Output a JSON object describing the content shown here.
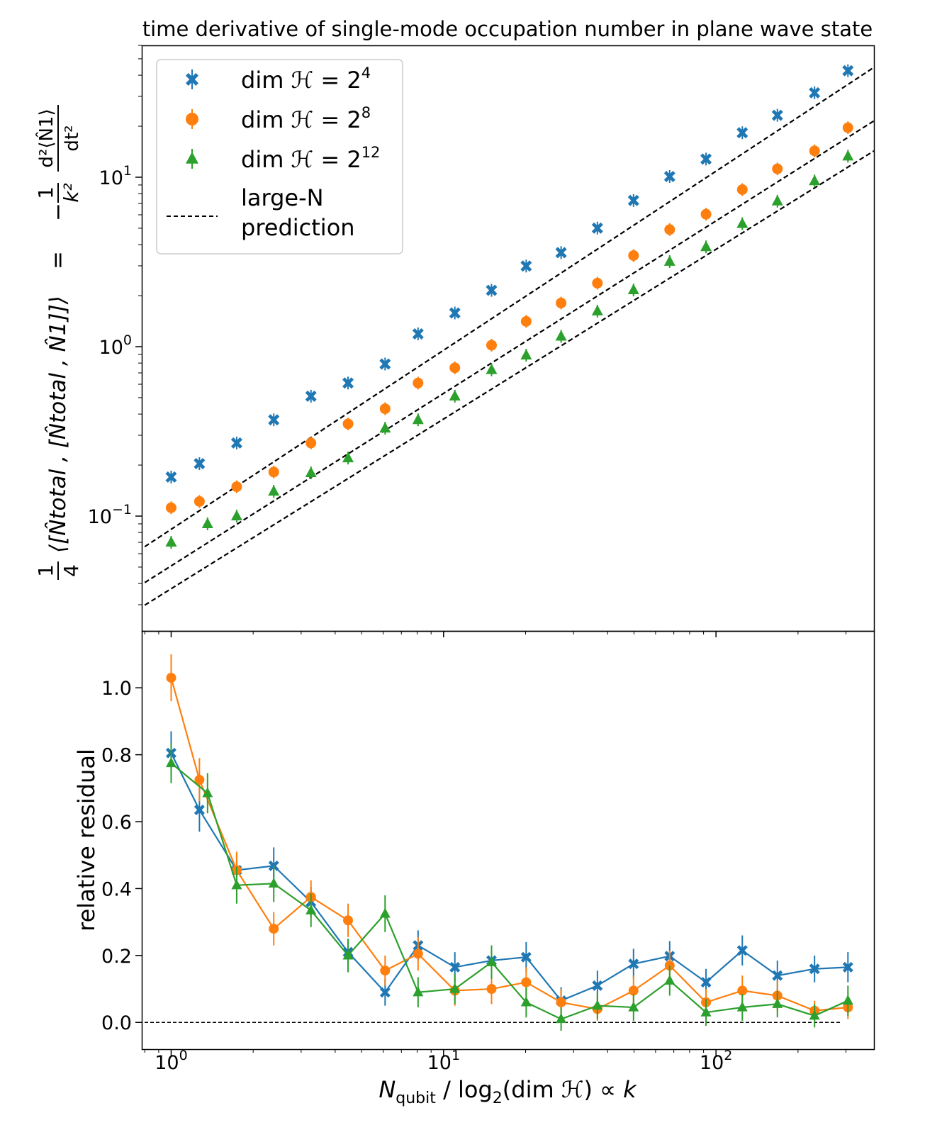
{
  "title": "time derivative of single-mode occupation number in plane wave state",
  "legend": {
    "entries": [
      {
        "prefix": "dim ",
        "script": "ℋ",
        "eq": " = 2",
        "sup": "4"
      },
      {
        "prefix": "dim ",
        "script": "ℋ",
        "eq": " = 2",
        "sup": "8"
      },
      {
        "prefix": "dim ",
        "script": "ℋ",
        "eq": " = 2",
        "sup": "12"
      }
    ],
    "prediction_line1": "large-N",
    "prediction_line2": "prediction"
  },
  "top_ylabel": {
    "frac_num": "1",
    "frac_den": "4",
    "commutator": "⟨[N̂total , [N̂total , N̂1]]⟩",
    "equals": "=",
    "rhs_sign": "−",
    "rhs_frac_num": "1",
    "rhs_frac_den": "k²",
    "rhs_deriv_num": "d²⟨N̂1⟩",
    "rhs_deriv_den": "dt²"
  },
  "bottom_ylabel": "relative residual",
  "xlabel": {
    "main": "N",
    "sub": "qubit",
    "mid": " / log",
    "sub2": "2",
    "rest": "(dim ",
    "script": "ℋ",
    "close": ")  ∝  ",
    "k": "k"
  },
  "colors": {
    "s4": "#1f77b4",
    "s8": "#ff7f0e",
    "s12": "#2ca02c",
    "prediction": "#000000"
  },
  "chart_data": [
    {
      "type": "scatter",
      "panel": "top",
      "xscale": "log",
      "yscale": "log",
      "xlim": [
        0.78,
        380
      ],
      "ylim": [
        0.021,
        60
      ],
      "x_ticks": [
        {
          "v": 1,
          "base": "10",
          "exp": "0"
        },
        {
          "v": 10,
          "base": "10",
          "exp": "1"
        },
        {
          "v": 100,
          "base": "10",
          "exp": "2"
        }
      ],
      "y_ticks": [
        {
          "v": 0.1,
          "base": "10",
          "exp": "−1"
        },
        {
          "v": 1,
          "base": "10",
          "exp": "0"
        },
        {
          "v": 10,
          "base": "10",
          "exp": "1"
        }
      ],
      "series": [
        {
          "key": "s4",
          "marker": "x",
          "x": [
            1.0,
            1.27,
            1.74,
            2.38,
            3.26,
            4.46,
            6.1,
            8.06,
            11.0,
            15.0,
            20.1,
            27.0,
            36.7,
            49.8,
            67.6,
            91.9,
            124.9,
            168.0,
            230.0,
            305.0
          ],
          "y": [
            0.17,
            0.204,
            0.27,
            0.37,
            0.51,
            0.61,
            0.79,
            1.19,
            1.58,
            2.15,
            2.99,
            3.59,
            5.01,
            7.29,
            10.1,
            12.8,
            18.3,
            23.2,
            31.5,
            42.5
          ]
        },
        {
          "key": "s8",
          "marker": "o",
          "x": [
            1.0,
            1.27,
            1.74,
            2.38,
            3.26,
            4.46,
            6.1,
            8.06,
            11.0,
            15.0,
            20.1,
            27.0,
            36.7,
            49.8,
            67.6,
            91.9,
            124.9,
            168.0,
            230.0,
            305.0
          ],
          "y": [
            0.112,
            0.122,
            0.149,
            0.182,
            0.27,
            0.35,
            0.43,
            0.61,
            0.75,
            1.02,
            1.41,
            1.81,
            2.37,
            3.45,
            4.91,
            6.05,
            8.45,
            11.2,
            14.3,
            19.6
          ]
        },
        {
          "key": "s12",
          "marker": "^",
          "x": [
            1.0,
            1.36,
            1.74,
            2.38,
            3.26,
            4.46,
            6.1,
            8.06,
            11.0,
            15.0,
            20.1,
            27.0,
            36.7,
            49.8,
            67.6,
            91.9,
            124.9,
            168.0,
            230.0,
            305.0
          ],
          "y": [
            0.07,
            0.09,
            0.1,
            0.14,
            0.18,
            0.22,
            0.33,
            0.37,
            0.51,
            0.73,
            0.89,
            1.15,
            1.62,
            2.16,
            3.18,
            3.88,
            5.32,
            7.22,
            9.5,
            13.3
          ]
        }
      ],
      "prediction_lines": [
        {
          "x": [
            0.8,
            380
          ],
          "y": [
            0.066,
            44.5
          ]
        },
        {
          "x": [
            0.8,
            380
          ],
          "y": [
            0.0405,
            21.5
          ]
        },
        {
          "x": [
            0.8,
            380
          ],
          "y": [
            0.0298,
            14.3
          ]
        }
      ]
    },
    {
      "type": "line",
      "panel": "bottom",
      "xscale": "log",
      "xlim": [
        0.78,
        380
      ],
      "ylim": [
        -0.08,
        1.17
      ],
      "y_ticks": [
        "0.0",
        "0.2",
        "0.4",
        "0.6",
        "0.8",
        "1.0"
      ],
      "zero_line": 0,
      "series": [
        {
          "key": "s4",
          "marker": "x",
          "x": [
            1.0,
            1.27,
            1.74,
            2.38,
            3.26,
            4.46,
            6.1,
            8.06,
            11.0,
            15.0,
            20.1,
            27.0,
            36.7,
            49.8,
            67.6,
            91.9,
            124.9,
            168.0,
            230.0,
            305.0
          ],
          "y": [
            0.805,
            0.635,
            0.455,
            0.468,
            0.36,
            0.21,
            0.09,
            0.23,
            0.165,
            0.185,
            0.195,
            0.065,
            0.11,
            0.175,
            0.198,
            0.12,
            0.215,
            0.14,
            0.16,
            0.165
          ],
          "err": [
            0.065,
            0.065,
            0.05,
            0.055,
            0.045,
            0.04,
            0.04,
            0.045,
            0.045,
            0.045,
            0.045,
            0.04,
            0.045,
            0.045,
            0.045,
            0.04,
            0.045,
            0.045,
            0.04,
            0.045
          ]
        },
        {
          "key": "s8",
          "marker": "o",
          "x": [
            1.0,
            1.27,
            1.74,
            2.38,
            3.26,
            4.46,
            6.1,
            8.06,
            11.0,
            15.0,
            20.1,
            27.0,
            36.7,
            49.8,
            67.6,
            91.9,
            124.9,
            168.0,
            230.0,
            305.0
          ],
          "y": [
            1.03,
            0.725,
            0.455,
            0.28,
            0.375,
            0.305,
            0.155,
            0.205,
            0.095,
            0.1,
            0.12,
            0.06,
            0.04,
            0.095,
            0.17,
            0.06,
            0.095,
            0.08,
            0.035,
            0.045
          ],
          "err": [
            0.07,
            0.065,
            0.055,
            0.05,
            0.05,
            0.05,
            0.045,
            0.05,
            0.045,
            0.045,
            0.045,
            0.04,
            0.035,
            0.045,
            0.045,
            0.04,
            0.045,
            0.045,
            0.03,
            0.035
          ]
        },
        {
          "key": "s12",
          "marker": "^",
          "x": [
            1.0,
            1.36,
            1.74,
            2.38,
            3.26,
            4.46,
            6.1,
            8.06,
            11.0,
            15.0,
            20.1,
            27.0,
            36.7,
            49.8,
            67.6,
            91.9,
            124.9,
            168.0,
            230.0,
            305.0
          ],
          "y": [
            0.775,
            0.685,
            0.41,
            0.415,
            0.335,
            0.2,
            0.325,
            0.09,
            0.1,
            0.18,
            0.06,
            0.01,
            0.05,
            0.045,
            0.125,
            0.03,
            0.045,
            0.055,
            0.02,
            0.065
          ],
          "err": [
            0.06,
            0.06,
            0.055,
            0.055,
            0.05,
            0.05,
            0.055,
            0.045,
            0.045,
            0.05,
            0.045,
            0.035,
            0.04,
            0.04,
            0.045,
            0.04,
            0.04,
            0.04,
            0.035,
            0.045
          ]
        }
      ]
    }
  ]
}
